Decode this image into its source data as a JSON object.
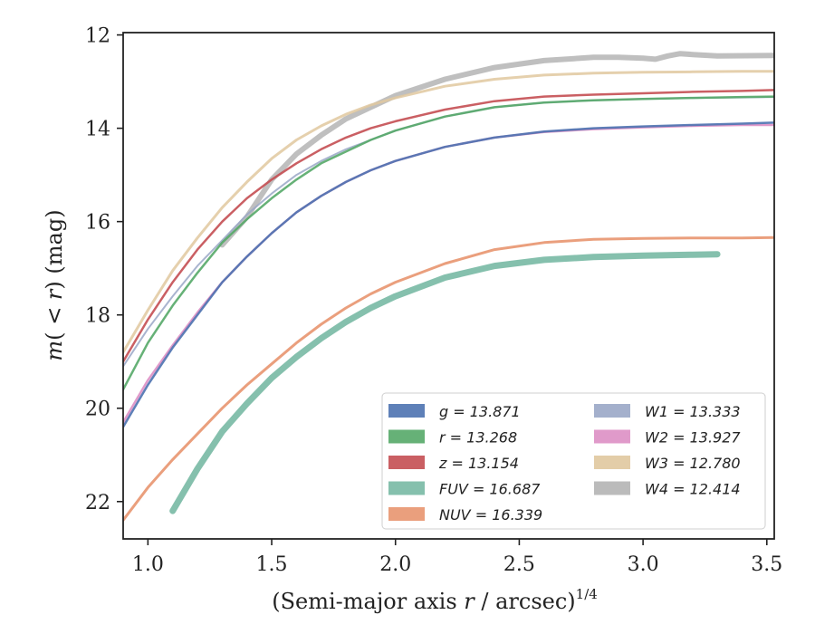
{
  "chart_data": {
    "type": "line",
    "xlabel": "(Semi-major axis r / arcsec)",
    "xlabel_parts": {
      "pre": "(Semi-major axis ",
      "var": "r",
      "post": " / arcsec)",
      "sup": "1/4"
    },
    "ylabel": "m( < r) (mag)",
    "ylabel_parts": {
      "m": "m",
      "open": "(",
      "lt": " < ",
      "r": "r",
      "close": ")",
      "unit": " (mag)"
    },
    "xlim": [
      0.9,
      3.53
    ],
    "ylim": [
      22.8,
      11.95
    ],
    "y_inverted": true,
    "grid": false,
    "legend_position": "lower-right",
    "x_ticks": [
      1.0,
      1.5,
      2.0,
      2.5,
      3.0,
      3.5
    ],
    "x_tick_labels": [
      "1.0",
      "1.5",
      "2.0",
      "2.5",
      "3.0",
      "3.5"
    ],
    "y_ticks": [
      12,
      14,
      16,
      18,
      20,
      22
    ],
    "y_tick_labels": [
      "12",
      "14",
      "16",
      "18",
      "20",
      "22"
    ],
    "series": [
      {
        "name": "g",
        "value": "13.871",
        "color": "#4c72b0",
        "x": [
          0.9,
          1.0,
          1.1,
          1.2,
          1.3,
          1.4,
          1.5,
          1.6,
          1.7,
          1.8,
          1.9,
          2.0,
          2.2,
          2.4,
          2.6,
          2.8,
          3.0,
          3.2,
          3.4,
          3.53
        ],
        "y": [
          20.4,
          19.5,
          18.7,
          18.0,
          17.3,
          16.75,
          16.25,
          15.8,
          15.45,
          15.15,
          14.9,
          14.7,
          14.4,
          14.2,
          14.07,
          14.0,
          13.96,
          13.93,
          13.9,
          13.88
        ]
      },
      {
        "name": "r",
        "value": "13.268",
        "color": "#55a868",
        "x": [
          0.9,
          1.0,
          1.1,
          1.2,
          1.3,
          1.4,
          1.5,
          1.6,
          1.7,
          1.8,
          1.9,
          2.0,
          2.2,
          2.4,
          2.6,
          2.8,
          3.0,
          3.2,
          3.4,
          3.53
        ],
        "y": [
          19.6,
          18.6,
          17.8,
          17.1,
          16.45,
          15.95,
          15.5,
          15.1,
          14.75,
          14.5,
          14.25,
          14.05,
          13.75,
          13.55,
          13.45,
          13.4,
          13.37,
          13.35,
          13.33,
          13.32
        ]
      },
      {
        "name": "z",
        "value": "13.154",
        "color": "#c44e52",
        "x": [
          0.9,
          1.0,
          1.1,
          1.2,
          1.3,
          1.4,
          1.5,
          1.6,
          1.7,
          1.8,
          1.9,
          2.0,
          2.2,
          2.4,
          2.6,
          2.8,
          3.0,
          3.2,
          3.4,
          3.53
        ],
        "y": [
          19.0,
          18.1,
          17.3,
          16.6,
          16.0,
          15.5,
          15.1,
          14.75,
          14.45,
          14.2,
          14.0,
          13.85,
          13.6,
          13.42,
          13.32,
          13.28,
          13.25,
          13.22,
          13.2,
          13.18
        ]
      },
      {
        "name": "FUV",
        "value": "16.687",
        "color": "#78b9a4",
        "x": [
          1.1,
          1.2,
          1.3,
          1.4,
          1.5,
          1.6,
          1.7,
          1.8,
          1.9,
          2.0,
          2.2,
          2.4,
          2.6,
          2.8,
          3.0,
          3.2,
          3.3
        ],
        "y": [
          22.2,
          21.3,
          20.5,
          19.9,
          19.35,
          18.9,
          18.5,
          18.15,
          17.85,
          17.6,
          17.2,
          16.95,
          16.82,
          16.76,
          16.73,
          16.71,
          16.7
        ]
      },
      {
        "name": "NUV",
        "value": "16.339",
        "color": "#e8956f",
        "x": [
          0.9,
          1.0,
          1.1,
          1.2,
          1.3,
          1.4,
          1.5,
          1.6,
          1.7,
          1.8,
          1.9,
          2.0,
          2.2,
          2.4,
          2.6,
          2.8,
          3.0,
          3.2,
          3.4,
          3.53
        ],
        "y": [
          22.4,
          21.7,
          21.1,
          20.55,
          20.0,
          19.5,
          19.05,
          18.6,
          18.2,
          17.85,
          17.55,
          17.3,
          16.9,
          16.6,
          16.45,
          16.38,
          16.36,
          16.35,
          16.35,
          16.34
        ]
      },
      {
        "name": "W1",
        "value": "13.333",
        "color": "#9aa7c7",
        "x": [
          0.9,
          1.0,
          1.1,
          1.2,
          1.3,
          1.4,
          1.5,
          1.6,
          1.7,
          1.8,
          1.9,
          2.0,
          2.2,
          2.4,
          2.6,
          2.8,
          3.0,
          3.2,
          3.4,
          3.53
        ],
        "y": [
          19.1,
          18.3,
          17.6,
          16.95,
          16.4,
          15.85,
          15.4,
          15.0,
          14.7,
          14.45,
          14.25,
          14.05,
          13.75,
          13.55,
          13.45,
          13.4,
          13.37,
          13.35,
          13.34,
          13.33
        ]
      },
      {
        "name": "W2",
        "value": "13.927",
        "color": "#dd8fc4",
        "x": [
          0.9,
          1.0,
          1.1,
          1.2,
          1.3,
          1.4,
          1.5,
          1.6,
          1.7,
          1.8,
          1.9,
          2.0,
          2.2,
          2.4,
          2.6,
          2.8,
          3.0,
          3.2,
          3.4,
          3.53
        ],
        "y": [
          20.3,
          19.4,
          18.65,
          17.95,
          17.3,
          16.75,
          16.25,
          15.8,
          15.45,
          15.15,
          14.9,
          14.7,
          14.4,
          14.2,
          14.08,
          14.02,
          13.98,
          13.95,
          13.93,
          13.93
        ]
      },
      {
        "name": "W3",
        "value": "12.780",
        "color": "#e0c89f",
        "x": [
          0.9,
          1.0,
          1.1,
          1.2,
          1.3,
          1.4,
          1.5,
          1.6,
          1.7,
          1.8,
          1.9,
          2.0,
          2.2,
          2.4,
          2.6,
          2.8,
          3.0,
          3.2,
          3.4,
          3.53
        ],
        "y": [
          18.8,
          17.9,
          17.05,
          16.35,
          15.7,
          15.15,
          14.65,
          14.25,
          13.95,
          13.7,
          13.5,
          13.35,
          13.1,
          12.95,
          12.86,
          12.82,
          12.8,
          12.79,
          12.78,
          12.78
        ]
      },
      {
        "name": "W4",
        "value": "12.414",
        "color": "#b4b4b4",
        "x": [
          1.3,
          1.4,
          1.5,
          1.6,
          1.7,
          1.8,
          1.9,
          2.0,
          2.2,
          2.4,
          2.6,
          2.8,
          2.9,
          3.0,
          3.05,
          3.1,
          3.15,
          3.2,
          3.3,
          3.53
        ],
        "y": [
          16.5,
          15.9,
          15.1,
          14.55,
          14.15,
          13.8,
          13.55,
          13.3,
          12.95,
          12.7,
          12.55,
          12.48,
          12.48,
          12.5,
          12.52,
          12.45,
          12.4,
          12.42,
          12.45,
          12.44
        ]
      }
    ]
  }
}
